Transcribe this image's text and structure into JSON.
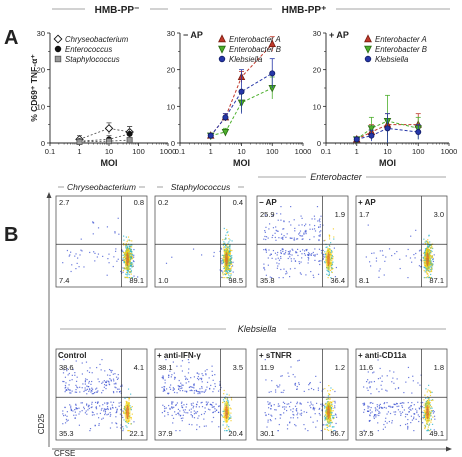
{
  "panel_a_label": "A",
  "panel_b_label": "B",
  "header_minus": "HMB-PP⁻",
  "header_plus": "HMB-PP⁺",
  "colors": {
    "red": "#c0392b",
    "green": "#4caf2c",
    "blue": "#2536a8",
    "dot_blue": "#3a4fd0",
    "gray": "#999999",
    "axis": "#222222"
  },
  "chart_data": [
    {
      "type": "scatter",
      "title": "",
      "xlabel": "MOI",
      "ylabel": "% CD69⁺ TNF-α⁺",
      "x_scale": "log",
      "xlim": [
        0.1,
        1000
      ],
      "ylim": [
        0,
        30
      ],
      "x_ticks": [
        "0.1",
        "1",
        "10",
        "100",
        "1000"
      ],
      "y_ticks": [
        "0",
        "10",
        "20",
        "30"
      ],
      "legend_position": "top-left",
      "series": [
        {
          "name": "Chryseobacterium",
          "marker": "diamond-open",
          "x": [
            1,
            10,
            50
          ],
          "y": [
            1.0,
            4.0,
            3.0
          ],
          "err": [
            1.0,
            1.5,
            1.5
          ]
        },
        {
          "name": "Enterococcus",
          "marker": "circle-filled",
          "x": [
            1,
            10,
            50
          ],
          "y": [
            0.5,
            1.0,
            2.5
          ],
          "err": [
            0.5,
            1.0,
            2.0
          ]
        },
        {
          "name": "Staphylococcus",
          "marker": "square-gray",
          "x": [
            1,
            10,
            50
          ],
          "y": [
            0.3,
            0.5,
            0.8
          ],
          "err": [
            0.3,
            0.5,
            0.5
          ]
        }
      ]
    },
    {
      "type": "line",
      "title": "− AP",
      "xlabel": "MOI",
      "ylabel": "",
      "x_scale": "log",
      "xlim": [
        0.1,
        1000
      ],
      "ylim": [
        0,
        30
      ],
      "x_ticks": [
        "0.1",
        "1",
        "10",
        "100",
        "1000"
      ],
      "y_ticks": [
        "0",
        "10",
        "20",
        "30"
      ],
      "legend_position": "top-right",
      "series": [
        {
          "name": "Enterobacter A",
          "marker": "triangle-up-red",
          "x": [
            1,
            3,
            10,
            100
          ],
          "y": [
            2,
            7,
            18,
            27
          ],
          "err": [
            0.5,
            1.0,
            1.5,
            2.0
          ]
        },
        {
          "name": "Enterobacter B",
          "marker": "triangle-down-green",
          "x": [
            1,
            3,
            10,
            100
          ],
          "y": [
            2,
            3,
            11,
            15
          ],
          "err": [
            0.5,
            1.0,
            2.5,
            3.0
          ]
        },
        {
          "name": "Klebsiella",
          "marker": "circle-blue",
          "x": [
            1,
            3,
            10,
            100
          ],
          "y": [
            2,
            7,
            14,
            19
          ],
          "err": [
            0.5,
            1.0,
            6.0,
            4.0
          ]
        }
      ]
    },
    {
      "type": "line",
      "title": "+ AP",
      "xlabel": "MOI",
      "ylabel": "",
      "x_scale": "log",
      "xlim": [
        0.1,
        1000
      ],
      "ylim": [
        0,
        30
      ],
      "x_ticks": [
        "0.1",
        "1",
        "10",
        "100",
        "1000"
      ],
      "y_ticks": [
        "0",
        "10",
        "20",
        "30"
      ],
      "legend_position": "top-right",
      "series": [
        {
          "name": "Enterobacter A",
          "marker": "triangle-up-red",
          "x": [
            1,
            3,
            10,
            100
          ],
          "y": [
            1,
            3,
            5,
            5
          ],
          "err": [
            0.5,
            2.0,
            3.0,
            3.0
          ]
        },
        {
          "name": "Enterobacter B",
          "marker": "triangle-down-green",
          "x": [
            1,
            3,
            10,
            100
          ],
          "y": [
            1,
            4,
            6,
            4
          ],
          "err": [
            0.5,
            3.0,
            7.0,
            3.0
          ]
        },
        {
          "name": "Klebsiella",
          "marker": "circle-blue",
          "x": [
            1,
            3,
            10,
            100
          ],
          "y": [
            1,
            2,
            4,
            3
          ],
          "err": [
            0.5,
            1.5,
            4.0,
            2.0
          ]
        }
      ]
    }
  ],
  "flow": {
    "row1_group": "Enterobacter",
    "row2_group": "Klebsiella",
    "x_axis_label": "CFSE",
    "y_axis_label": "CD25",
    "plots": [
      {
        "label": "Chryseobacterium",
        "italic": true,
        "label_style": "dash",
        "q": [
          "2.7",
          "0.8",
          "7.4",
          "89.1"
        ]
      },
      {
        "label": "Staphylococcus",
        "italic": true,
        "label_style": "dash",
        "q": [
          "0.2",
          "0.4",
          "1.0",
          "98.5"
        ]
      },
      {
        "label": "− AP",
        "italic": false,
        "label_style": "inside",
        "q": [
          "25.9",
          "1.9",
          "35.8",
          "36.4"
        ]
      },
      {
        "label": "+ AP",
        "italic": false,
        "label_style": "inside",
        "q": [
          "1.7",
          "3.0",
          "8.1",
          "87.1"
        ]
      },
      {
        "label": "Control",
        "italic": false,
        "label_style": "inside",
        "q": [
          "38.6",
          "4.1",
          "35.3",
          "22.1"
        ]
      },
      {
        "label": "+ anti-IFN-γ",
        "italic": false,
        "label_style": "inside",
        "q": [
          "38.1",
          "3.5",
          "37.9",
          "20.4"
        ]
      },
      {
        "label": "+ sTNFR",
        "italic": false,
        "label_style": "inside",
        "q": [
          "11.9",
          "1.2",
          "30.1",
          "56.7"
        ]
      },
      {
        "label": "+ anti-CD11a",
        "italic": false,
        "label_style": "inside",
        "q": [
          "11.6",
          "1.8",
          "37.5",
          "49.1"
        ]
      }
    ]
  }
}
